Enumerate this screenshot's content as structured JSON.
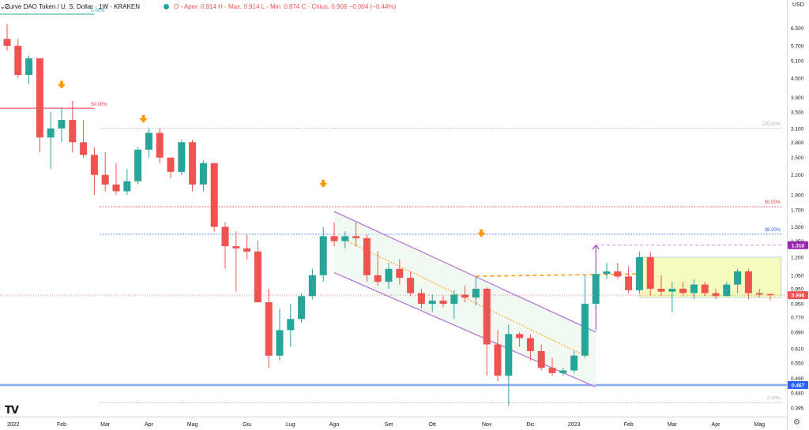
{
  "header": {
    "symbol": "Curve DAO Token / U. S. Dollar · 1W · KRAKEN",
    "ohlc": "O - Aper. 0.914  H - Max. 0.914  L - Min. 0.874  C - Chius. 0.906  −0.004 (−0.44%)",
    "collapse_label": "2"
  },
  "price_axis": {
    "currency": "USD"
  },
  "icons": {
    "logo": "tradingview-logo-icon",
    "settings": "gear-icon"
  },
  "logo_text": "TV",
  "colors": {
    "up": "#26a69a",
    "down": "#ef5350",
    "channel": "#b46bd6",
    "orange": "#ff9800"
  },
  "chart_data": {
    "type": "candlestick",
    "y_scale": "log",
    "ylim": [
      0.37,
      7.2
    ],
    "price_ticks": [
      6.5,
      5.7,
      5.1,
      4.5,
      3.9,
      3.5,
      3.1,
      2.8,
      2.5,
      2.2,
      1.9,
      1.7,
      1.5,
      1.35,
      1.2,
      1.05,
      0.95,
      0.85,
      0.77,
      0.69,
      0.61,
      0.55,
      0.49,
      0.44,
      0.395
    ],
    "price_tick_labels": [
      "6.500",
      "5.700",
      "5.100",
      "4.500",
      "3.900",
      "3.500",
      "3.100",
      "2.800",
      "2.500",
      "2.200",
      "1.900",
      "1.700",
      "1.500",
      "1.350",
      "1.200",
      "1.050",
      "0.950",
      "0.850",
      "0.770",
      "0.690",
      "0.610",
      "0.550",
      "0.490",
      "0.440",
      "0.395"
    ],
    "time_labels": [
      {
        "label": "2022",
        "week": 0
      },
      {
        "label": "Feb",
        "week": 5
      },
      {
        "label": "Mar",
        "week": 9
      },
      {
        "label": "Apr",
        "week": 13
      },
      {
        "label": "Mag",
        "week": 17
      },
      {
        "label": "Giu",
        "week": 22
      },
      {
        "label": "Lug",
        "week": 26
      },
      {
        "label": "Ago",
        "week": 30
      },
      {
        "label": "Set",
        "week": 35
      },
      {
        "label": "Ott",
        "week": 39
      },
      {
        "label": "Nov",
        "week": 44
      },
      {
        "label": "Dic",
        "week": 48
      },
      {
        "label": "2023",
        "week": 52
      },
      {
        "label": "Feb",
        "week": 57
      },
      {
        "label": "Mar",
        "week": 61
      },
      {
        "label": "Apr",
        "week": 65
      },
      {
        "label": "Mag",
        "week": 69
      }
    ],
    "candles": [
      {
        "o": 6.0,
        "h": 6.7,
        "l": 5.5,
        "c": 5.7
      },
      {
        "o": 5.7,
        "h": 6.0,
        "l": 4.5,
        "c": 4.6
      },
      {
        "o": 4.6,
        "h": 5.3,
        "l": 4.3,
        "c": 5.2
      },
      {
        "o": 5.2,
        "h": 5.2,
        "l": 2.6,
        "c": 2.9
      },
      {
        "o": 2.9,
        "h": 3.5,
        "l": 2.3,
        "c": 3.1
      },
      {
        "o": 3.1,
        "h": 3.6,
        "l": 2.8,
        "c": 3.3
      },
      {
        "o": 3.3,
        "h": 3.8,
        "l": 2.6,
        "c": 2.8
      },
      {
        "o": 2.8,
        "h": 3.3,
        "l": 2.5,
        "c": 2.55
      },
      {
        "o": 2.55,
        "h": 2.7,
        "l": 1.9,
        "c": 2.2
      },
      {
        "o": 2.2,
        "h": 2.6,
        "l": 1.95,
        "c": 2.05
      },
      {
        "o": 2.05,
        "h": 2.4,
        "l": 1.9,
        "c": 1.95
      },
      {
        "o": 1.95,
        "h": 2.3,
        "l": 1.9,
        "c": 2.1
      },
      {
        "o": 2.1,
        "h": 2.7,
        "l": 2.05,
        "c": 2.65
      },
      {
        "o": 2.65,
        "h": 3.1,
        "l": 2.5,
        "c": 3.0
      },
      {
        "o": 3.0,
        "h": 3.1,
        "l": 2.4,
        "c": 2.5
      },
      {
        "o": 2.5,
        "h": 2.5,
        "l": 2.15,
        "c": 2.25
      },
      {
        "o": 2.25,
        "h": 2.85,
        "l": 2.2,
        "c": 2.8
      },
      {
        "o": 2.8,
        "h": 2.85,
        "l": 1.95,
        "c": 2.05
      },
      {
        "o": 2.05,
        "h": 2.45,
        "l": 1.95,
        "c": 2.4
      },
      {
        "o": 2.4,
        "h": 2.4,
        "l": 1.45,
        "c": 1.5
      },
      {
        "o": 1.5,
        "h": 1.55,
        "l": 1.1,
        "c": 1.3
      },
      {
        "o": 1.3,
        "h": 1.45,
        "l": 0.93,
        "c": 1.28
      },
      {
        "o": 1.28,
        "h": 1.42,
        "l": 1.18,
        "c": 1.25
      },
      {
        "o": 1.25,
        "h": 1.35,
        "l": 0.9,
        "c": 0.86
      },
      {
        "o": 0.86,
        "h": 0.95,
        "l": 0.53,
        "c": 0.58
      },
      {
        "o": 0.58,
        "h": 0.82,
        "l": 0.56,
        "c": 0.7
      },
      {
        "o": 0.7,
        "h": 0.85,
        "l": 0.62,
        "c": 0.76
      },
      {
        "o": 0.76,
        "h": 0.92,
        "l": 0.74,
        "c": 0.9
      },
      {
        "o": 0.9,
        "h": 1.1,
        "l": 0.88,
        "c": 1.05
      },
      {
        "o": 1.05,
        "h": 1.5,
        "l": 1.0,
        "c": 1.4
      },
      {
        "o": 1.4,
        "h": 1.55,
        "l": 1.3,
        "c": 1.35
      },
      {
        "o": 1.35,
        "h": 1.45,
        "l": 1.28,
        "c": 1.4
      },
      {
        "o": 1.4,
        "h": 1.55,
        "l": 1.3,
        "c": 1.38
      },
      {
        "o": 1.38,
        "h": 1.42,
        "l": 1.0,
        "c": 1.05
      },
      {
        "o": 1.05,
        "h": 1.25,
        "l": 0.97,
        "c": 1.0
      },
      {
        "o": 1.0,
        "h": 1.15,
        "l": 0.95,
        "c": 1.1
      },
      {
        "o": 1.1,
        "h": 1.18,
        "l": 0.98,
        "c": 1.03
      },
      {
        "o": 1.03,
        "h": 1.08,
        "l": 0.9,
        "c": 0.92
      },
      {
        "o": 0.92,
        "h": 0.95,
        "l": 0.82,
        "c": 0.85
      },
      {
        "o": 0.85,
        "h": 0.91,
        "l": 0.8,
        "c": 0.87
      },
      {
        "o": 0.87,
        "h": 0.9,
        "l": 0.83,
        "c": 0.85
      },
      {
        "o": 0.85,
        "h": 0.94,
        "l": 0.76,
        "c": 0.91
      },
      {
        "o": 0.91,
        "h": 0.97,
        "l": 0.86,
        "c": 0.89
      },
      {
        "o": 0.89,
        "h": 1.04,
        "l": 0.84,
        "c": 0.95
      },
      {
        "o": 0.95,
        "h": 0.96,
        "l": 0.5,
        "c": 0.63
      },
      {
        "o": 0.63,
        "h": 0.7,
        "l": 0.48,
        "c": 0.5
      },
      {
        "o": 0.5,
        "h": 0.73,
        "l": 0.4,
        "c": 0.68
      },
      {
        "o": 0.68,
        "h": 0.69,
        "l": 0.62,
        "c": 0.66
      },
      {
        "o": 0.66,
        "h": 0.68,
        "l": 0.56,
        "c": 0.6
      },
      {
        "o": 0.6,
        "h": 0.63,
        "l": 0.52,
        "c": 0.53
      },
      {
        "o": 0.53,
        "h": 0.57,
        "l": 0.5,
        "c": 0.51
      },
      {
        "o": 0.51,
        "h": 0.53,
        "l": 0.5,
        "c": 0.52
      },
      {
        "o": 0.52,
        "h": 0.6,
        "l": 0.51,
        "c": 0.58
      },
      {
        "o": 0.58,
        "h": 1.05,
        "l": 0.57,
        "c": 0.85
      },
      {
        "o": 0.85,
        "h": 1.1,
        "l": 0.83,
        "c": 1.06
      },
      {
        "o": 1.06,
        "h": 1.15,
        "l": 1.02,
        "c": 1.08
      },
      {
        "o": 1.08,
        "h": 1.15,
        "l": 1.02,
        "c": 1.04
      },
      {
        "o": 1.04,
        "h": 1.12,
        "l": 0.92,
        "c": 0.94
      },
      {
        "o": 0.94,
        "h": 1.25,
        "l": 0.92,
        "c": 1.2
      },
      {
        "o": 1.2,
        "h": 1.25,
        "l": 0.9,
        "c": 0.95
      },
      {
        "o": 0.95,
        "h": 1.05,
        "l": 0.9,
        "c": 0.93
      },
      {
        "o": 0.93,
        "h": 1.0,
        "l": 0.8,
        "c": 0.95
      },
      {
        "o": 0.95,
        "h": 1.0,
        "l": 0.9,
        "c": 0.92
      },
      {
        "o": 0.92,
        "h": 1.02,
        "l": 0.88,
        "c": 0.98
      },
      {
        "o": 0.98,
        "h": 1.0,
        "l": 0.9,
        "c": 0.92
      },
      {
        "o": 0.92,
        "h": 0.95,
        "l": 0.88,
        "c": 0.9
      },
      {
        "o": 0.9,
        "h": 1.0,
        "l": 0.9,
        "c": 0.98
      },
      {
        "o": 0.98,
        "h": 1.1,
        "l": 0.92,
        "c": 1.08
      },
      {
        "o": 1.08,
        "h": 1.1,
        "l": 0.88,
        "c": 0.92
      },
      {
        "o": 0.92,
        "h": 0.95,
        "l": 0.89,
        "c": 0.91
      },
      {
        "o": 0.914,
        "h": 0.914,
        "l": 0.874,
        "c": 0.906
      }
    ],
    "last_price": {
      "value": 0.906,
      "label": "0.906"
    },
    "price_tags": [
      {
        "value": 1.31,
        "label": "1.310",
        "color": "#9c27b0"
      },
      {
        "value": 0.467,
        "label": "0.467",
        "color": "#2962ff"
      }
    ],
    "fib_top": [
      {
        "value": 3.6,
        "label": "50.00%",
        "color": "#f23645",
        "style": "solid",
        "from_week": 0,
        "to_week": 8,
        "label_week": 8
      },
      {
        "value": 7.2,
        "label": "0.00%",
        "color": "#26a69a",
        "style": "solid",
        "from_week": 0,
        "to_week": 8,
        "label_week": 8
      }
    ],
    "fib_levels": [
      {
        "value": 3.1,
        "label": "100.00%",
        "color": "#b2b5be",
        "style": "dotted"
      },
      {
        "value": 1.74,
        "label": "50.00%",
        "color": "#f23645",
        "style": "dotted"
      },
      {
        "value": 1.42,
        "label": "38.20%",
        "color": "#2962ff",
        "style": "dotted"
      },
      {
        "value": 0.41,
        "label": "0.00%",
        "color": "#b2b5be",
        "style": "dotted"
      }
    ],
    "support_line": {
      "value": 0.467,
      "color": "#2962ff"
    },
    "horizontal_resistance": {
      "value": 1.06,
      "from_week": 43,
      "to_week": 58,
      "color": "#ff9800"
    },
    "channel": {
      "upper": [
        {
          "week": 30,
          "value": 1.68
        },
        {
          "week": 54,
          "value": 0.69
        }
      ],
      "lower": [
        {
          "week": 30,
          "value": 1.07
        },
        {
          "week": 54,
          "value": 0.46
        }
      ],
      "mid": [
        {
          "week": 31,
          "value": 1.36
        },
        {
          "week": 53,
          "value": 0.58
        }
      ]
    },
    "range_box": {
      "from_week": 58,
      "to_week": 71,
      "top": 1.2,
      "bottom": 0.89
    },
    "target_arrow": {
      "week": 54,
      "from": 0.7,
      "to": 1.31,
      "dashed_to_week": 71
    },
    "markers": [
      {
        "week": 5,
        "value": 4.25
      },
      {
        "week": 12.5,
        "value": 3.3
      },
      {
        "week": 29,
        "value": 2.05
      },
      {
        "week": 43.5,
        "value": 1.42
      }
    ]
  }
}
